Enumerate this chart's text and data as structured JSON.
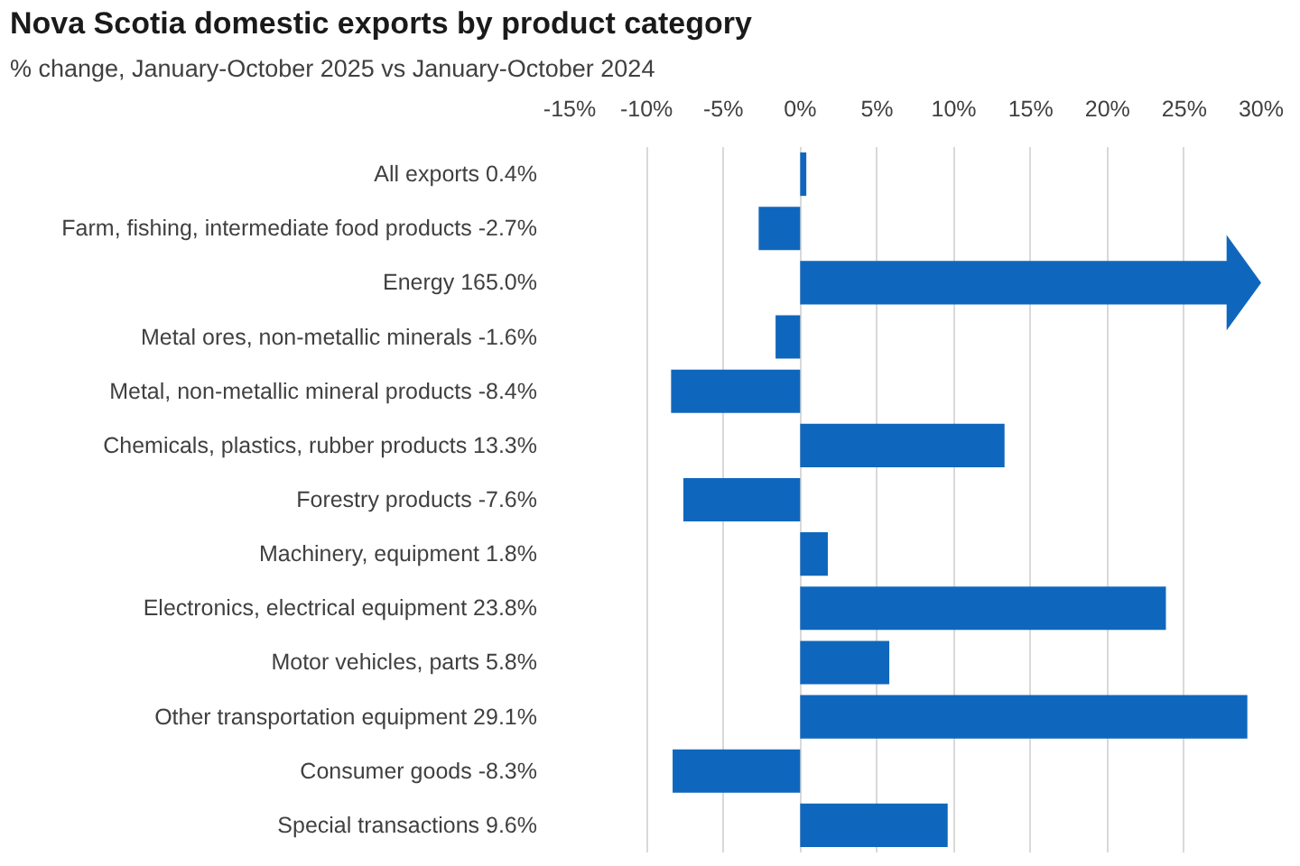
{
  "chart_data": {
    "type": "bar",
    "orientation": "horizontal",
    "title": "Nova Scotia domestic exports by product category",
    "subtitle": "% change, January-October 2025 vs January-October 2024",
    "categories": [
      "All exports 0.4%",
      "Farm, fishing, intermediate food products -2.7%",
      "Energy 165.0%",
      "Metal ores, non-metallic minerals -1.6%",
      "Metal, non-metallic mineral products -8.4%",
      "Chemicals, plastics, rubber products 13.3%",
      "Forestry products -7.6%",
      "Machinery, equipment 1.8%",
      "Electronics, electrical equipment 23.8%",
      "Motor vehicles, parts 5.8%",
      "Other transportation equipment 29.1%",
      "Consumer goods -8.3%",
      "Special transactions 9.6%"
    ],
    "values": [
      0.4,
      -2.7,
      null,
      -1.6,
      -8.4,
      13.3,
      -7.6,
      1.8,
      23.8,
      5.8,
      29.1,
      -8.3,
      9.6
    ],
    "color": "#0f67bd",
    "xlim": [
      -15,
      30
    ],
    "xticks": [
      {
        "value": -15,
        "label": "-15%"
      },
      {
        "value": -10,
        "label": "-10%"
      },
      {
        "value": -5,
        "label": "-5%"
      },
      {
        "value": 0,
        "label": "0%"
      },
      {
        "value": 5,
        "label": "5%"
      },
      {
        "value": 10,
        "label": "10%"
      },
      {
        "value": 15,
        "label": "15%"
      },
      {
        "value": 20,
        "label": "20%"
      },
      {
        "value": 25,
        "label": "25%"
      },
      {
        "value": 30,
        "label": "30%"
      }
    ],
    "grid": "x"
  }
}
